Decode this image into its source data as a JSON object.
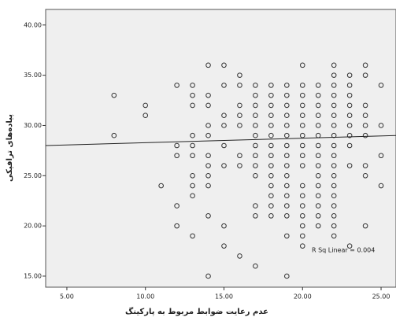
{
  "chart_data": {
    "type": "scatter",
    "x_label": "عدم رعایت ضوابط مربوط به پارکینگ",
    "y_label": "پیاده‌های ترافیکی",
    "annotation": "R Sq Linear = 0.004",
    "xlim": [
      3.65,
      25.95
    ],
    "ylim": [
      13.9,
      41.55
    ],
    "xticks": [
      {
        "value": 5,
        "label": "5.00"
      },
      {
        "value": 10,
        "label": "10.00"
      },
      {
        "value": 15,
        "label": "15.00"
      },
      {
        "value": 20,
        "label": "20.00"
      },
      {
        "value": 25,
        "label": "25.00"
      }
    ],
    "yticks": [
      {
        "value": 15,
        "label": "15.00"
      },
      {
        "value": 20,
        "label": "20.00"
      },
      {
        "value": 25,
        "label": "25.00"
      },
      {
        "value": 30,
        "label": "30.00"
      },
      {
        "value": 35,
        "label": "35.00"
      },
      {
        "value": 40,
        "label": "40.00"
      }
    ],
    "color": "#333333",
    "background": "#efefef",
    "columns": [
      {
        "x": 8,
        "y": [
          33,
          29
        ]
      },
      {
        "x": 10,
        "y": [
          32,
          31
        ]
      },
      {
        "x": 11,
        "y": [
          24
        ]
      },
      {
        "x": 12,
        "y": [
          34,
          28,
          27,
          22,
          20
        ]
      },
      {
        "x": 13,
        "y": [
          34,
          33,
          32,
          29,
          28,
          27,
          25,
          24,
          23,
          19
        ]
      },
      {
        "x": 14,
        "y": [
          36,
          33,
          32,
          30,
          29,
          27,
          26,
          25,
          24,
          21,
          15
        ]
      },
      {
        "x": 15,
        "y": [
          36,
          34,
          31,
          30,
          28,
          26,
          20,
          18
        ]
      },
      {
        "x": 16,
        "y": [
          35,
          34,
          32,
          31,
          30,
          27,
          26,
          17
        ]
      },
      {
        "x": 17,
        "y": [
          34,
          33,
          32,
          31,
          30,
          29,
          28,
          27,
          26,
          25,
          22,
          21,
          16
        ]
      },
      {
        "x": 18,
        "y": [
          34,
          33,
          32,
          31,
          30,
          29,
          28,
          27,
          26,
          25,
          24,
          23,
          22,
          21
        ]
      },
      {
        "x": 19,
        "y": [
          34,
          33,
          32,
          31,
          30,
          29,
          28,
          27,
          26,
          25,
          24,
          23,
          22,
          21,
          19,
          15
        ]
      },
      {
        "x": 20,
        "y": [
          36,
          34,
          33,
          32,
          31,
          30,
          29,
          28,
          27,
          26,
          24,
          23,
          22,
          21,
          20,
          19,
          18
        ]
      },
      {
        "x": 21,
        "y": [
          34,
          33,
          32,
          31,
          30,
          29,
          28,
          27,
          26,
          25,
          24,
          23,
          22,
          21,
          20
        ]
      },
      {
        "x": 22,
        "y": [
          36,
          35,
          34,
          33,
          32,
          31,
          30,
          29,
          28,
          27,
          26,
          25,
          24,
          23,
          22,
          21,
          20,
          19
        ]
      },
      {
        "x": 23,
        "y": [
          35,
          34,
          33,
          32,
          31,
          30,
          29,
          28,
          26,
          18
        ]
      },
      {
        "x": 24,
        "y": [
          36,
          35,
          32,
          31,
          30,
          29,
          26,
          25,
          20
        ]
      },
      {
        "x": 25,
        "y": [
          34,
          30,
          27,
          24
        ]
      }
    ],
    "fit_line": {
      "x": [
        3.65,
        25.95
      ],
      "y": [
        28.0,
        29.0
      ]
    }
  }
}
